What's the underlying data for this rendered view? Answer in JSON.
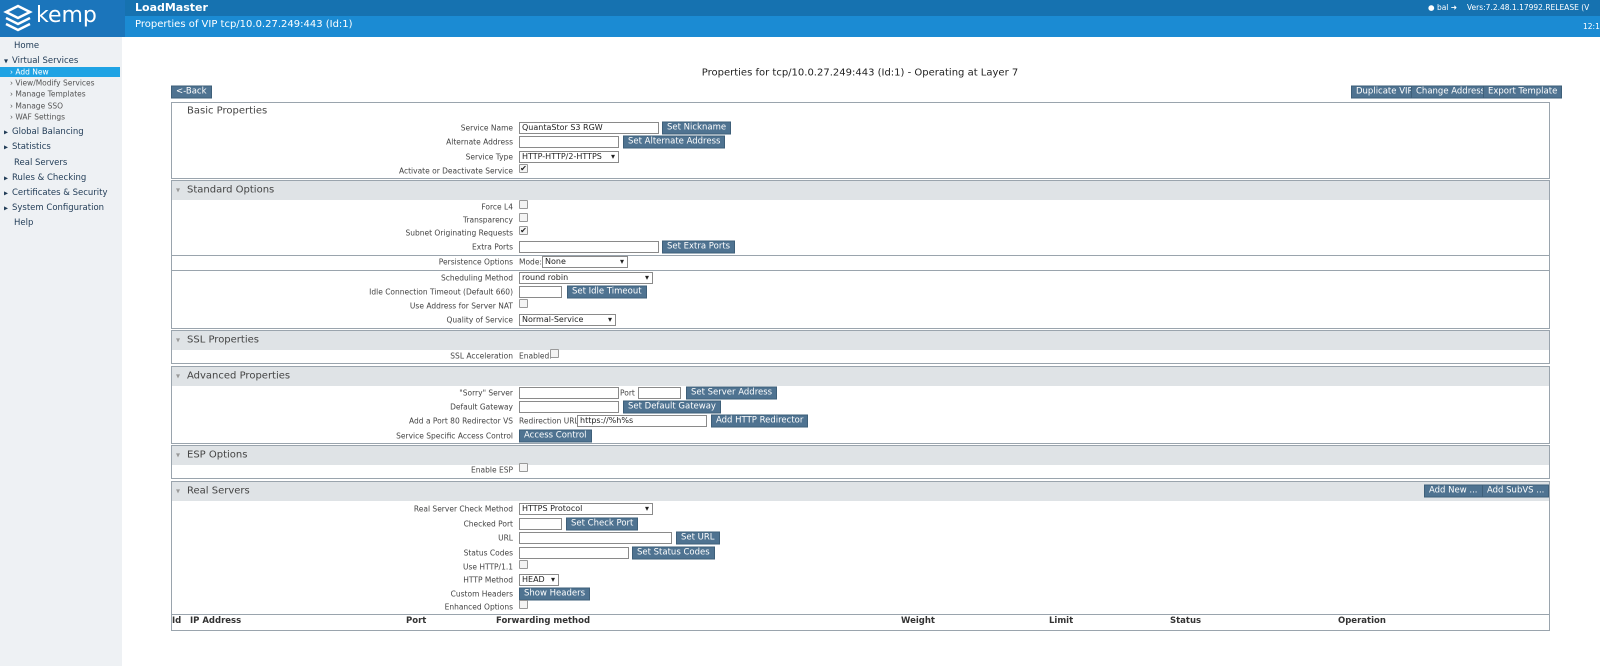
{
  "header": {
    "brand": "kemp",
    "product": "LoadMaster",
    "page_title": "Properties of VIP tcp/10.0.27.249:443 (Id:1)",
    "user": "bal",
    "version": "Vers:7.2.48.1.17992.RELEASE (V",
    "time": "12:1"
  },
  "sidebar": {
    "items": [
      "Home",
      "Virtual Services",
      "Global Balancing",
      "Statistics",
      "Real Servers",
      "Rules & Checking",
      "Certificates & Security",
      "System Configuration",
      "Help"
    ],
    "subitems": [
      "Add New",
      "View/Modify Services",
      "Manage Templates",
      "Manage SSO",
      "WAF Settings"
    ]
  },
  "main": {
    "title": "Properties for tcp/10.0.27.249:443 (Id:1) - Operating at Layer 7",
    "back_button": "<-Back",
    "actions": [
      "Duplicate VIP",
      "Change Address",
      "Export Template"
    ],
    "sections": [
      {
        "title": "Basic Properties",
        "rows": [
          {
            "label": "Service Name",
            "controls": [
              {
                "kind": "input",
                "value": "QuantaStor S3 RGW"
              },
              {
                "kind": "button",
                "text": "Set Nickname"
              }
            ]
          },
          {
            "label": "Alternate Address",
            "controls": [
              {
                "kind": "input"
              },
              {
                "kind": "button",
                "text": "Set Alternate Address"
              }
            ]
          },
          {
            "label": "Service Type",
            "controls": [
              {
                "kind": "select",
                "value": "HTTP-HTTP/2-HTTPS"
              }
            ]
          },
          {
            "label": "Activate or Deactivate Service",
            "controls": [
              {
                "kind": "checkbox",
                "checked": true
              }
            ]
          }
        ]
      },
      {
        "title": "Standard Options",
        "rows": [
          {
            "label": "Force L4",
            "controls": [
              {
                "kind": "checkbox",
                "checked": false
              }
            ]
          },
          {
            "label": "Transparency",
            "controls": [
              {
                "kind": "checkbox",
                "checked": false
              }
            ]
          },
          {
            "label": "Subnet Originating Requests",
            "controls": [
              {
                "kind": "checkbox",
                "checked": true
              }
            ]
          },
          {
            "label": "Extra Ports",
            "controls": [
              {
                "kind": "input"
              },
              {
                "kind": "button",
                "text": "Set Extra Ports"
              }
            ]
          },
          {
            "label": "Persistence Options",
            "controls": [
              {
                "kind": "text",
                "text": "Mode:"
              },
              {
                "kind": "select",
                "value": "None"
              }
            ]
          },
          {
            "label": "Scheduling Method",
            "controls": [
              {
                "kind": "select",
                "value": "round robin"
              }
            ]
          },
          {
            "label": "Idle Connection Timeout (Default 660)",
            "controls": [
              {
                "kind": "input"
              },
              {
                "kind": "button",
                "text": "Set Idle Timeout"
              }
            ]
          },
          {
            "label": "Use Address for Server NAT",
            "controls": [
              {
                "kind": "checkbox",
                "checked": false
              }
            ]
          },
          {
            "label": "Quality of Service",
            "controls": [
              {
                "kind": "select",
                "value": "Normal-Service"
              }
            ]
          }
        ]
      },
      {
        "title": "SSL Properties",
        "rows": [
          {
            "label": "SSL Acceleration",
            "controls": [
              {
                "kind": "text",
                "text": "Enabled:"
              },
              {
                "kind": "checkbox",
                "checked": false
              }
            ]
          }
        ]
      },
      {
        "title": "Advanced Properties",
        "rows": [
          {
            "label": "\"Sorry\" Server",
            "controls": [
              {
                "kind": "input"
              },
              {
                "kind": "text",
                "text": "Port"
              },
              {
                "kind": "input"
              },
              {
                "kind": "button",
                "text": "Set Server Address"
              }
            ]
          },
          {
            "label": "Default Gateway",
            "controls": [
              {
                "kind": "input"
              },
              {
                "kind": "button",
                "text": "Set Default Gateway"
              }
            ]
          },
          {
            "label": "Add a Port 80 Redirector VS",
            "controls": [
              {
                "kind": "text",
                "text": "Redirection URL:"
              },
              {
                "kind": "input",
                "value": "https://%h%s"
              },
              {
                "kind": "button",
                "text": "Add HTTP Redirector"
              }
            ]
          },
          {
            "label": "Service Specific Access Control",
            "controls": [
              {
                "kind": "button",
                "text": "Access Control"
              }
            ]
          }
        ]
      },
      {
        "title": "ESP Options",
        "rows": [
          {
            "label": "Enable ESP",
            "controls": [
              {
                "kind": "checkbox",
                "checked": false
              }
            ]
          }
        ]
      },
      {
        "title": "Real Servers",
        "actions": [
          "Add New ...",
          "Add SubVS ..."
        ],
        "rows": [
          {
            "label": "Real Server Check Method",
            "controls": [
              {
                "kind": "select",
                "value": "HTTPS Protocol"
              }
            ]
          },
          {
            "label": "Checked Port",
            "controls": [
              {
                "kind": "input"
              },
              {
                "kind": "button",
                "text": "Set Check Port"
              }
            ]
          },
          {
            "label": "URL",
            "controls": [
              {
                "kind": "input"
              },
              {
                "kind": "button",
                "text": "Set URL"
              }
            ]
          },
          {
            "label": "Status Codes",
            "controls": [
              {
                "kind": "input"
              },
              {
                "kind": "button",
                "text": "Set Status Codes"
              }
            ]
          },
          {
            "label": "Use HTTP/1.1",
            "controls": [
              {
                "kind": "checkbox",
                "checked": false
              }
            ]
          },
          {
            "label": "HTTP Method",
            "controls": [
              {
                "kind": "select",
                "value": "HEAD"
              }
            ]
          },
          {
            "label": "Custom Headers",
            "controls": [
              {
                "kind": "button",
                "text": "Show Headers"
              }
            ]
          },
          {
            "label": "Enhanced Options",
            "controls": [
              {
                "kind": "checkbox",
                "checked": false
              }
            ]
          }
        ],
        "table_columns": [
          "Id",
          "IP Address",
          "Port",
          "Forwarding method",
          "Weight",
          "Limit",
          "Status",
          "Operation"
        ]
      }
    ]
  }
}
